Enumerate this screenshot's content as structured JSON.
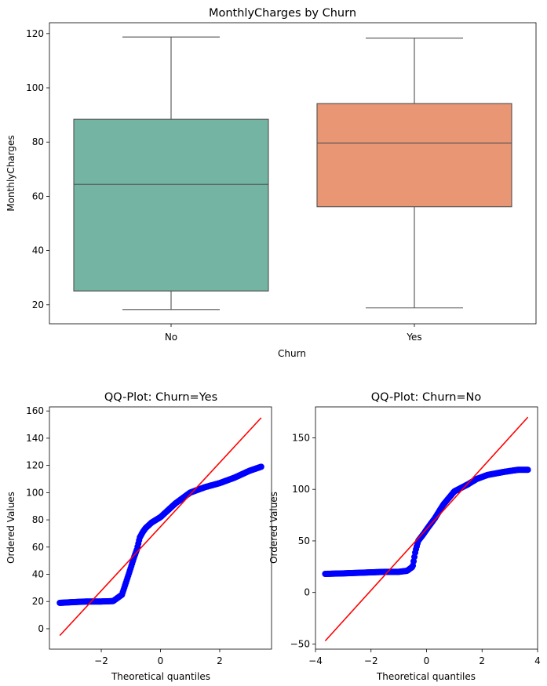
{
  "chart_data": [
    {
      "type": "box",
      "title": "MonthlyCharges by Churn",
      "xlabel": "Churn",
      "ylabel": "MonthlyCharges",
      "categories": [
        "No",
        "Yes"
      ],
      "colors": [
        "#73b5a2",
        "#e99675"
      ],
      "line_color": "#505050",
      "ylim": [
        13,
        124
      ],
      "yticks": [
        20,
        40,
        60,
        80,
        100,
        120
      ],
      "boxes": [
        {
          "whisker_low": 18.25,
          "q1": 25.1,
          "median": 64.4,
          "q3": 88.4,
          "whisker_high": 118.75
        },
        {
          "whisker_low": 18.85,
          "q1": 56.15,
          "median": 79.65,
          "q3": 94.2,
          "whisker_high": 118.35
        }
      ]
    },
    {
      "type": "scatter",
      "title": "QQ-Plot: Churn=Yes",
      "xlabel": "Theoretical quantiles",
      "ylabel": "Ordered Values",
      "xlim": [
        -3.75,
        3.75
      ],
      "ylim": [
        -15,
        163
      ],
      "xticks": [
        -2,
        0,
        2
      ],
      "yticks": [
        0,
        20,
        40,
        60,
        80,
        100,
        120,
        140,
        160
      ],
      "point_color": "#0000ff",
      "fit_line_color": "#ff0000",
      "fit_line": {
        "x": [
          -3.4,
          3.4
        ],
        "y": [
          -5,
          155
        ]
      },
      "quantile_curve": {
        "x": [
          -3.4,
          -3.0,
          -2.5,
          -2.0,
          -1.6,
          -1.3,
          -1.15,
          -1.0,
          -0.9,
          -0.8,
          -0.7,
          -0.6,
          -0.5,
          -0.3,
          0.0,
          0.5,
          1.0,
          1.5,
          2.0,
          2.5,
          3.0,
          3.4
        ],
        "y": [
          19,
          19.5,
          20,
          20,
          20.3,
          25,
          35,
          45,
          52,
          58,
          67,
          71,
          74,
          78,
          82,
          92,
          100,
          104,
          107,
          111,
          116,
          119
        ]
      }
    },
    {
      "type": "scatter",
      "title": "QQ-Plot: Churn=No",
      "xlabel": "Theoretical quantiles",
      "ylabel": "Ordered Values",
      "xlim": [
        -4,
        4
      ],
      "ylim": [
        -55,
        180
      ],
      "xticks": [
        -4,
        -2,
        0,
        2,
        4
      ],
      "yticks": [
        -50,
        0,
        50,
        100,
        150
      ],
      "point_color": "#0000ff",
      "fit_line_color": "#ff0000",
      "fit_line": {
        "x": [
          -3.65,
          3.65
        ],
        "y": [
          -47,
          170
        ]
      },
      "quantile_curve": {
        "x": [
          -3.65,
          -3.0,
          -2.5,
          -2.0,
          -1.5,
          -1.0,
          -0.7,
          -0.5,
          -0.4,
          -0.3,
          -0.1,
          0.0,
          0.3,
          0.6,
          1.0,
          1.5,
          1.8,
          2.2,
          2.8,
          3.3,
          3.65
        ],
        "y": [
          18,
          18.5,
          19,
          19.5,
          20,
          20,
          21,
          25,
          40,
          50,
          57,
          61,
          72,
          85,
          98,
          105,
          110,
          114,
          117,
          119,
          119
        ]
      }
    }
  ]
}
